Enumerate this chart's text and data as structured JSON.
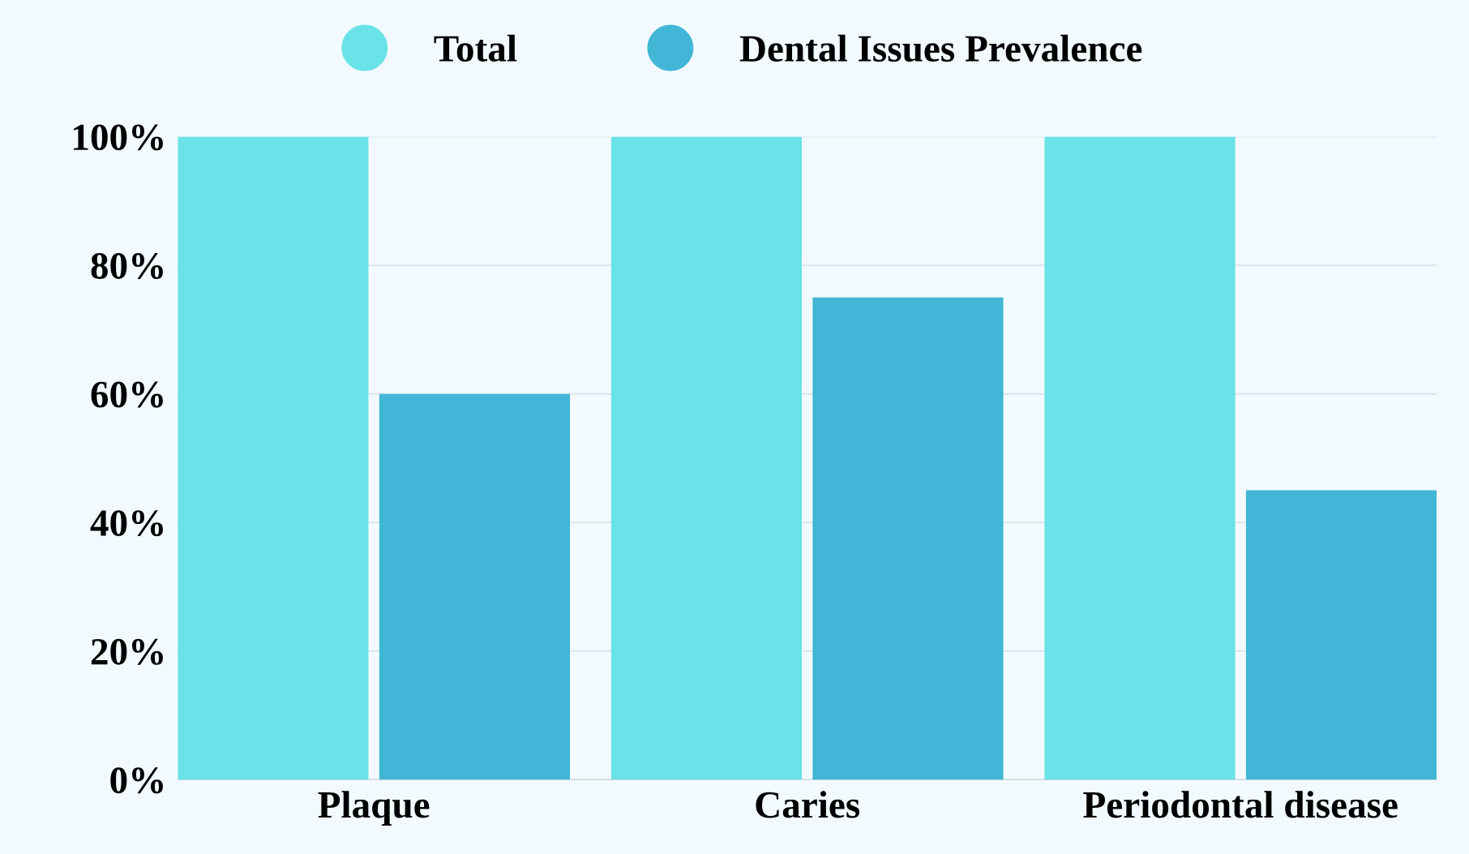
{
  "chart_data": {
    "type": "bar",
    "categories": [
      "Plaque",
      "Caries",
      "Periodontal disease"
    ],
    "series": [
      {
        "name": "Total",
        "color": "#6ae3e8",
        "values": [
          100,
          100,
          100
        ]
      },
      {
        "name": "Dental Issues Prevalence",
        "color": "#42b6d6",
        "values": [
          60,
          75,
          45
        ]
      }
    ],
    "ylim": [
      0,
      100
    ],
    "yticks": [
      {
        "value": 0,
        "label": "0%"
      },
      {
        "value": 20,
        "label": "20%"
      },
      {
        "value": 40,
        "label": "40%"
      },
      {
        "value": 60,
        "label": "60%"
      },
      {
        "value": 80,
        "label": "80%"
      },
      {
        "value": 100,
        "label": "100%"
      }
    ],
    "grid": "y",
    "legend": "top"
  }
}
